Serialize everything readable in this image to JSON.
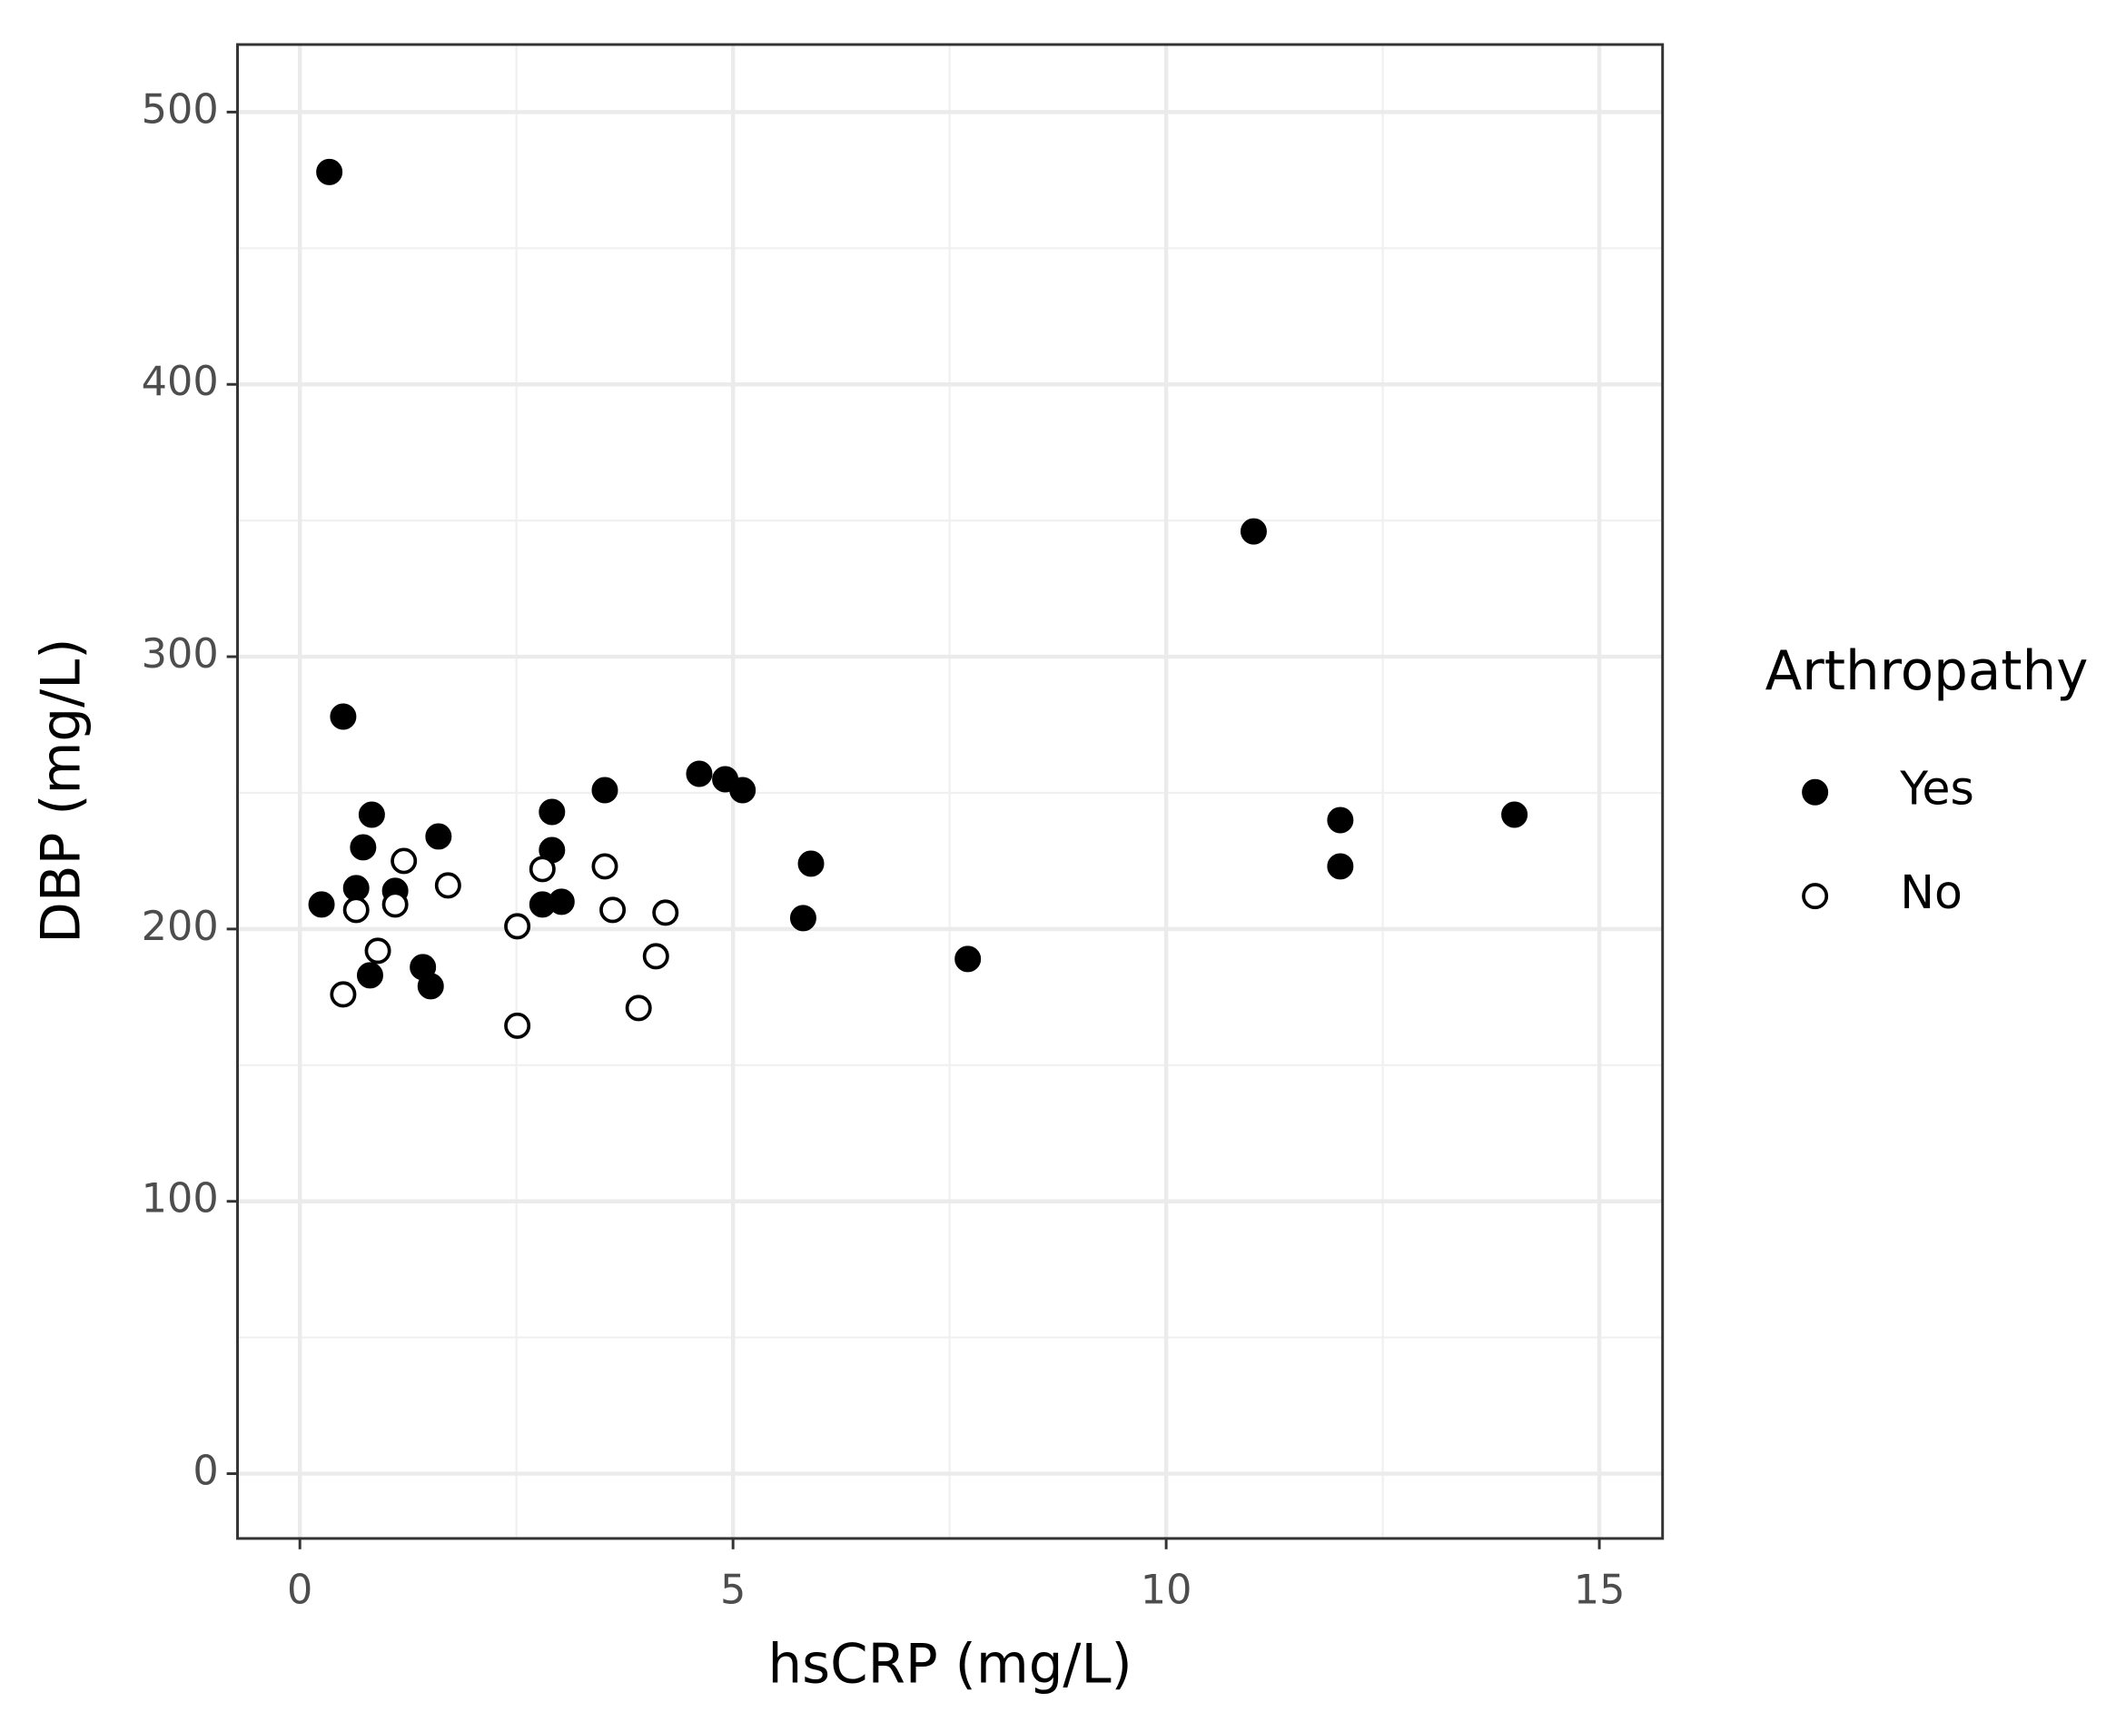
{
  "chart_data": {
    "type": "scatter",
    "x_label": "hsCRP (mg/L)",
    "y_label": "DBP (mg/L)",
    "xlim": [
      -0.72,
      15.73
    ],
    "ylim": [
      -23.8,
      524.8
    ],
    "xticks": [
      0,
      5,
      10,
      15
    ],
    "yticks": [
      0,
      100,
      200,
      300,
      400,
      500
    ],
    "x_minor_ticks": [
      2.5,
      7.5,
      12.5
    ],
    "y_minor_ticks": [
      50,
      150,
      250,
      350,
      450
    ],
    "grid": true,
    "legend_title": "Arthropathy",
    "legend_position": "right",
    "series": [
      {
        "name": "Yes",
        "color": "#000000",
        "marker_fill": "#000000",
        "x": [
          0.34,
          0.5,
          0.25,
          0.65,
          0.73,
          0.83,
          0.81,
          1.1,
          1.42,
          1.51,
          1.6,
          2.91,
          2.91,
          2.8,
          3.02,
          3.52,
          4.61,
          4.91,
          5.11,
          5.81,
          5.9,
          7.71,
          11.01,
          12.01,
          12.01,
          14.02
        ],
        "values": [
          478,
          278,
          209,
          215,
          230,
          242,
          183,
          214,
          186,
          179,
          234,
          243,
          229,
          209,
          210,
          251,
          257,
          255,
          251,
          204,
          224,
          189,
          346,
          240,
          223,
          242
        ]
      },
      {
        "name": "No",
        "color": "#000000",
        "marker_fill": "#ffffff",
        "x": [
          0.5,
          0.65,
          0.9,
          1.1,
          1.2,
          1.71,
          2.51,
          2.51,
          2.8,
          3.52,
          3.61,
          3.91,
          4.11,
          4.22
        ],
        "values": [
          176,
          207,
          192,
          209,
          225,
          216,
          201,
          164.5,
          222,
          223,
          207,
          171,
          190,
          206
        ]
      }
    ]
  }
}
